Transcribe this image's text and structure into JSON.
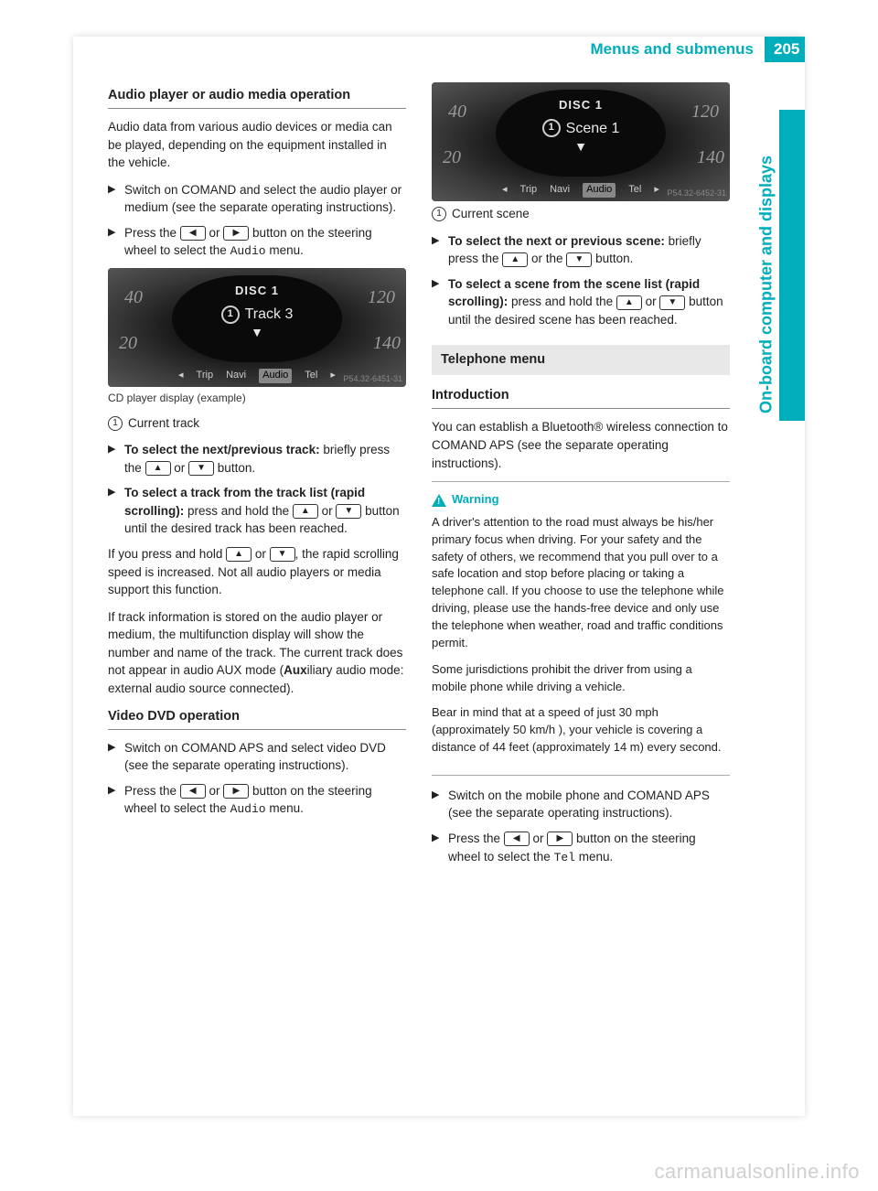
{
  "header": {
    "title": "Menus and submenus",
    "page_number": "205",
    "side_tab": "On-board computer and displays"
  },
  "colors": {
    "accent": "#00adba",
    "text": "#222222",
    "box_bg": "#e8e8e8",
    "display_bg": "#2b2b2b",
    "watermark": "#d0d0d0"
  },
  "left": {
    "h1": "Audio player or audio media operation",
    "p1": "Audio data from various audio devices or media can be played, depending on the equipment installed in the vehicle.",
    "b1": "Switch on COMAND and select the audio player or medium (see the separate operating instructions).",
    "b2_a": "Press the ",
    "b2_b": " or ",
    "b2_c": " button on the steering wheel to select the ",
    "b2_menu": "Audio",
    "b2_d": " menu.",
    "display1": {
      "disc": "DISC 1",
      "track_label": "Track 3",
      "nums": {
        "tl": "40",
        "bl": "20",
        "tr": "120",
        "br": "140"
      },
      "menu": [
        "Trip",
        "Navi",
        "Audio",
        "Tel"
      ],
      "menu_arrows": [
        "◂",
        "▸"
      ],
      "code": "P54.32-6451-31"
    },
    "caption1": "CD player display (example)",
    "label1": "Current track",
    "b3_bold": "To select the next/previous track:",
    "b3_a": " briefly press the ",
    "b3_b": " or ",
    "b3_c": " button.",
    "b4_bold": "To select a track from the track list (rapid scrolling):",
    "b4_a": " press and hold the ",
    "b4_b": " or ",
    "b4_c": " button until the desired track has been reached.",
    "p2_a": "If you press and hold ",
    "p2_b": " or ",
    "p2_c": ", the rapid scrolling speed is increased. Not all audio players or media support this function.",
    "p3_a": "If track information is stored on the audio player or medium, the multifunction display will show the number and name of the track. The current track does not appear in audio AUX mode (",
    "p3_bold": "Aux",
    "p3_b": "iliary audio mode: external audio source connected).",
    "h2": "Video DVD operation",
    "b5": "Switch on COMAND APS and select video DVD (see the separate operating instructions).",
    "b6_a": "Press the ",
    "b6_b": " or ",
    "b6_c": " button on the steering wheel to select the ",
    "b6_menu": "Audio",
    "b6_d": " menu."
  },
  "right": {
    "display2": {
      "disc": "DISC 1",
      "track_label": "Scene 1",
      "nums": {
        "tl": "40",
        "bl": "20",
        "tr": "120",
        "br": "140"
      },
      "menu": [
        "Trip",
        "Navi",
        "Audio",
        "Tel"
      ],
      "menu_arrows": [
        "◂",
        "▸"
      ],
      "code": "P54.32-6452-31"
    },
    "label1": "Current scene",
    "b1_bold": "To select the next or previous scene:",
    "b1_a": " briefly press the ",
    "b1_b": " or the ",
    "b1_c": " button.",
    "b2_bold": "To select a scene from the scene list (rapid scrolling):",
    "b2_a": " press and hold the ",
    "b2_b": " or ",
    "b2_c": " button until the desired scene has been reached.",
    "section": "Telephone menu",
    "h1": "Introduction",
    "p1": "You can establish a Bluetooth® wireless connection to COMAND APS (see the separate operating instructions).",
    "warning_label": "Warning",
    "warning": "A driver's attention to the road must always be his/her primary focus when driving. For your safety and the safety of others, we recommend that you pull over to a safe location and stop before placing or taking a telephone call. If you choose to use the telephone while driving, please use the hands-free device and only use the telephone when weather, road and traffic conditions permit.\nSome jurisdictions prohibit the driver from using a mobile phone while driving a vehicle.\nBear in mind that at a speed of just 30 mph (approximately 50 km/h ), your vehicle is covering a distance of 44 feet (approximately 14 m) every second.",
    "b3": "Switch on the mobile phone and COMAND APS (see the separate operating instructions).",
    "b4_a": "Press the ",
    "b4_b": " or ",
    "b4_c": " button on the steering wheel to select the ",
    "b4_menu": "Tel",
    "b4_d": " menu."
  },
  "buttons": {
    "left": "◀",
    "right": "▶",
    "up": "▲",
    "down": "▼"
  },
  "watermark": "carmanualsonline.info"
}
